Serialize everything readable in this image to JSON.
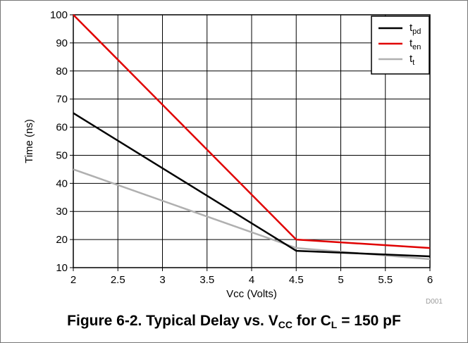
{
  "chart_data": {
    "type": "line",
    "xlabel": "Vcc (Volts)",
    "ylabel": "Time (ns)",
    "xlim": [
      2,
      6
    ],
    "ylim": [
      10,
      100
    ],
    "xticks": [
      2,
      2.5,
      3,
      3.5,
      4,
      4.5,
      5,
      5.5,
      6
    ],
    "xtick_labels": [
      "2",
      "2.5",
      "3",
      "3.5",
      "4",
      "4.5",
      "5",
      "5.5",
      "6"
    ],
    "yticks": [
      10,
      20,
      30,
      40,
      50,
      60,
      70,
      80,
      90,
      100
    ],
    "ytick_labels": [
      "10",
      "20",
      "30",
      "40",
      "50",
      "60",
      "70",
      "80",
      "90",
      "100"
    ],
    "grid": true,
    "legend_position": "top-right",
    "series": [
      {
        "name": "t",
        "name_sub": "pd",
        "color": "#000000",
        "x": [
          2,
          4.5,
          6
        ],
        "y": [
          65,
          16,
          14
        ]
      },
      {
        "name": "t",
        "name_sub": "en",
        "color": "#e00000",
        "x": [
          2,
          4.5,
          6
        ],
        "y": [
          100,
          20,
          17
        ]
      },
      {
        "name": "t",
        "name_sub": "t",
        "color": "#b0b0b0",
        "x": [
          2,
          4.5,
          6
        ],
        "y": [
          45,
          17,
          13
        ]
      }
    ]
  },
  "figure_id": "D001",
  "caption": {
    "prefix": "Figure 6-2. Typical Delay vs. V",
    "sub1": "CC",
    "mid": " for C",
    "sub2": "L",
    "suffix": " = 150 pF"
  }
}
